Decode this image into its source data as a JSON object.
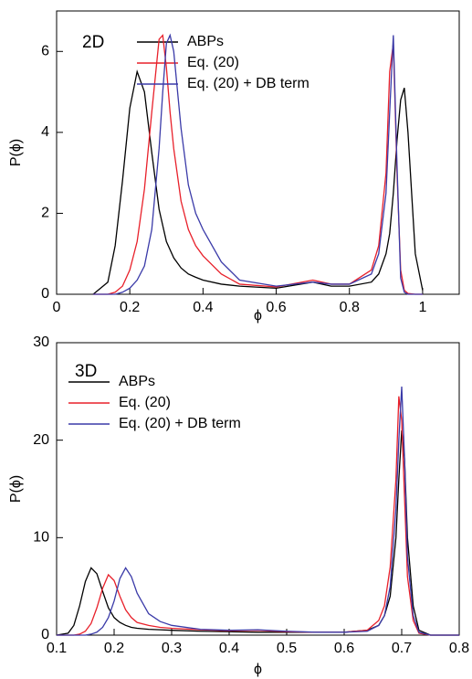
{
  "chart_data": [
    {
      "type": "line",
      "annotation": "2D",
      "x_label": "ϕ",
      "y_label": "P(ϕ)",
      "xlim": [
        0,
        1.1
      ],
      "ylim": [
        0,
        7
      ],
      "xticks": [
        0,
        0.2,
        0.4,
        0.6,
        0.8,
        1
      ],
      "yticks": [
        0,
        2,
        4,
        6
      ],
      "x": [
        0.1,
        0.14,
        0.16,
        0.18,
        0.2,
        0.22,
        0.24,
        0.26,
        0.28,
        0.29,
        0.3,
        0.31,
        0.32,
        0.34,
        0.36,
        0.38,
        0.4,
        0.45,
        0.5,
        0.6,
        0.7,
        0.75,
        0.8,
        0.86,
        0.88,
        0.9,
        0.91,
        0.92,
        0.93,
        0.94,
        0.95,
        0.96,
        0.98,
        1.0
      ],
      "series": [
        {
          "name": "ABPs",
          "color": "#000000",
          "values": [
            0,
            0.3,
            1.2,
            2.8,
            4.6,
            5.5,
            5.0,
            3.5,
            2.1,
            1.7,
            1.3,
            1.1,
            0.9,
            0.65,
            0.5,
            0.42,
            0.35,
            0.25,
            0.2,
            0.15,
            0.3,
            0.2,
            0.2,
            0.3,
            0.5,
            1.0,
            1.5,
            2.5,
            3.8,
            4.8,
            5.1,
            4.0,
            1.0,
            0.1
          ]
        },
        {
          "name": "Eq. (20)",
          "color": "#e8202a",
          "values": [
            0,
            0,
            0.05,
            0.2,
            0.6,
            1.3,
            2.6,
            4.5,
            6.3,
            6.4,
            5.6,
            4.5,
            3.6,
            2.3,
            1.6,
            1.2,
            0.95,
            0.5,
            0.25,
            0.18,
            0.35,
            0.25,
            0.25,
            0.6,
            1.2,
            3.0,
            5.5,
            6.2,
            3.0,
            0.6,
            0.1,
            0.02,
            0,
            0
          ]
        },
        {
          "name": "Eq. (20) + DB term",
          "color": "#3a3aa8",
          "values": [
            0,
            0,
            0,
            0.05,
            0.15,
            0.35,
            0.7,
            1.6,
            3.6,
            5.0,
            6.2,
            6.4,
            6.0,
            4.1,
            2.7,
            2.0,
            1.6,
            0.8,
            0.35,
            0.2,
            0.3,
            0.25,
            0.25,
            0.5,
            1.0,
            2.5,
            4.5,
            6.4,
            3.2,
            0.4,
            0.05,
            0,
            0,
            0
          ]
        }
      ]
    },
    {
      "type": "line",
      "annotation": "3D",
      "x_label": "ϕ",
      "y_label": "P(ϕ)",
      "xlim": [
        0.1,
        0.8
      ],
      "ylim": [
        0,
        30
      ],
      "xticks": [
        0.1,
        0.2,
        0.3,
        0.4,
        0.5,
        0.6,
        0.7,
        0.8
      ],
      "yticks": [
        0,
        10,
        20,
        30
      ],
      "x": [
        0.1,
        0.12,
        0.13,
        0.14,
        0.15,
        0.16,
        0.17,
        0.18,
        0.19,
        0.2,
        0.21,
        0.22,
        0.23,
        0.24,
        0.26,
        0.28,
        0.3,
        0.35,
        0.4,
        0.45,
        0.5,
        0.55,
        0.6,
        0.64,
        0.66,
        0.67,
        0.68,
        0.69,
        0.695,
        0.7,
        0.705,
        0.71,
        0.72,
        0.73,
        0.75,
        0.8
      ],
      "series": [
        {
          "name": "ABPs",
          "color": "#000000",
          "values": [
            0,
            0.2,
            1,
            3,
            5.5,
            6.9,
            6.3,
            4.5,
            2.8,
            1.8,
            1.3,
            1.0,
            0.8,
            0.7,
            0.6,
            0.55,
            0.5,
            0.4,
            0.35,
            0.3,
            0.3,
            0.3,
            0.3,
            0.5,
            1.0,
            2,
            4,
            10,
            16,
            21,
            18,
            10,
            3,
            0.5,
            0,
            0
          ]
        },
        {
          "name": "Eq. (20)",
          "color": "#e8202a",
          "values": [
            0,
            0,
            0,
            0.1,
            0.4,
            1.2,
            2.8,
            4.8,
            6.2,
            5.6,
            4.0,
            2.6,
            1.8,
            1.3,
            1.0,
            0.8,
            0.7,
            0.55,
            0.45,
            0.5,
            0.35,
            0.3,
            0.3,
            0.5,
            1.5,
            3,
            7,
            16,
            24.5,
            22,
            14,
            6,
            1.5,
            0.2,
            0,
            0
          ]
        },
        {
          "name": "Eq. (20) + DB term",
          "color": "#3a3aa8",
          "values": [
            0,
            0,
            0,
            0,
            0,
            0.1,
            0.3,
            0.8,
            1.8,
            3.5,
            5.8,
            6.9,
            6.0,
            4.3,
            2.2,
            1.4,
            1.0,
            0.6,
            0.5,
            0.55,
            0.4,
            0.3,
            0.3,
            0.4,
            1.0,
            2.0,
            5,
            13,
            20,
            25.5,
            18,
            8,
            2,
            0.3,
            0,
            0
          ]
        }
      ]
    }
  ]
}
